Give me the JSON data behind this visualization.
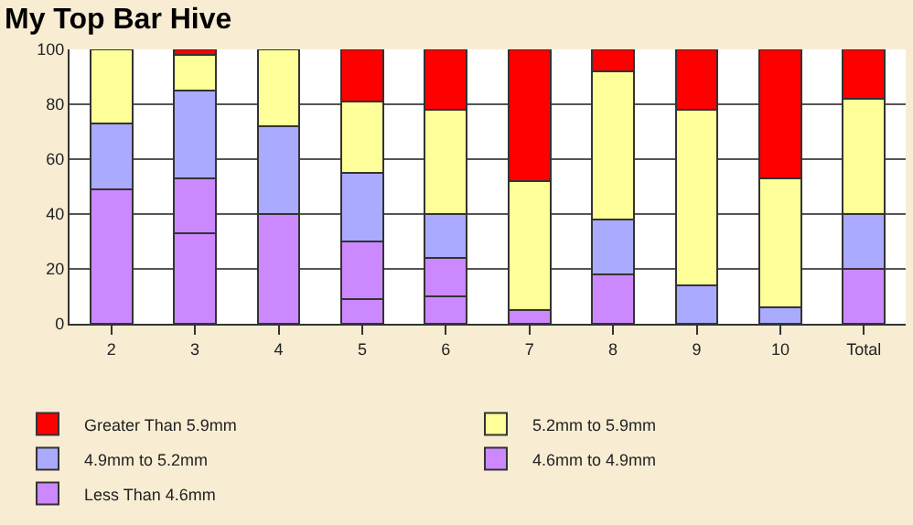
{
  "chart_data": {
    "type": "bar",
    "title": "My Top Bar Hive",
    "stacked": true,
    "categories": [
      "2",
      "3",
      "4",
      "5",
      "6",
      "7",
      "8",
      "9",
      "10",
      "Total"
    ],
    "series": [
      {
        "name": "Less Than 4.6mm",
        "color": "#cc88ff",
        "values": [
          49,
          33,
          40,
          9,
          10,
          5,
          18,
          null,
          null,
          20
        ]
      },
      {
        "name": "4.6mm to 4.9mm",
        "color": "#cc88ff",
        "values": [
          null,
          20,
          null,
          21,
          14,
          null,
          null,
          null,
          null,
          null
        ]
      },
      {
        "name": "4.9mm to 5.2mm",
        "color": "#aaaaff",
        "values": [
          24,
          32,
          32,
          25,
          16,
          null,
          20,
          14,
          6,
          20
        ]
      },
      {
        "name": "5.2mm to 5.9mm",
        "color": "#ffff99",
        "values": [
          27,
          13,
          28,
          26,
          38,
          47,
          54,
          64,
          47,
          42
        ]
      },
      {
        "name": "Greater Than 5.9mm",
        "color": "#ff0000",
        "values": [
          null,
          2,
          null,
          19,
          22,
          48,
          8,
          22,
          47,
          18
        ]
      }
    ],
    "ylim": [
      0,
      100
    ],
    "yticks": [
      0,
      20,
      40,
      60,
      80,
      100
    ],
    "grid": "y",
    "legend": "bottom"
  }
}
